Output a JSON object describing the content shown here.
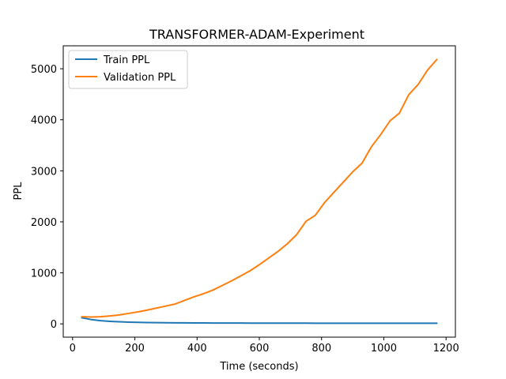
{
  "chart_data": {
    "type": "line",
    "title": "TRANSFORMER-ADAM-Experiment",
    "xlabel": "Time (seconds)",
    "ylabel": "PPL",
    "xlim": [
      -30,
      1230
    ],
    "ylim": [
      -260,
      5450
    ],
    "x_ticks": [
      0,
      200,
      400,
      600,
      800,
      1000,
      1200
    ],
    "y_ticks": [
      0,
      1000,
      2000,
      3000,
      4000,
      5000
    ],
    "grid": false,
    "legend_position": "upper-left",
    "series": [
      {
        "name": "Train PPL",
        "color": "#1f77b4",
        "x": [
          30,
          60,
          90,
          120,
          150,
          180,
          210,
          240,
          270,
          300,
          330,
          360,
          390,
          420,
          450,
          480,
          510,
          540,
          570,
          600,
          630,
          660,
          690,
          720,
          750,
          780,
          810,
          840,
          870,
          900,
          930,
          960,
          990,
          1020,
          1050,
          1080,
          1110,
          1140,
          1170
        ],
        "y": [
          120,
          85,
          63,
          50,
          41,
          35,
          30,
          27,
          25,
          23,
          21,
          20,
          19,
          18,
          17,
          17,
          16,
          16,
          15,
          15,
          15,
          14,
          14,
          14,
          14,
          13,
          13,
          13,
          13,
          13,
          13,
          12,
          12,
          12,
          12,
          12,
          12,
          12,
          12
        ]
      },
      {
        "name": "Validation PPL",
        "color": "#ff7f0e",
        "x": [
          30,
          60,
          90,
          120,
          150,
          180,
          210,
          240,
          270,
          300,
          330,
          360,
          390,
          420,
          450,
          480,
          510,
          540,
          570,
          600,
          630,
          660,
          690,
          720,
          750,
          780,
          810,
          840,
          870,
          900,
          930,
          960,
          990,
          1020,
          1050,
          1080,
          1110,
          1140,
          1170
        ],
        "y": [
          140,
          135,
          140,
          155,
          175,
          205,
          235,
          270,
          310,
          350,
          390,
          460,
          530,
          590,
          660,
          750,
          840,
          940,
          1040,
          1160,
          1290,
          1420,
          1570,
          1750,
          2010,
          2130,
          2380,
          2580,
          2780,
          2980,
          3150,
          3470,
          3710,
          3980,
          4130,
          4490,
          4690,
          4970,
          5180
        ]
      }
    ]
  }
}
